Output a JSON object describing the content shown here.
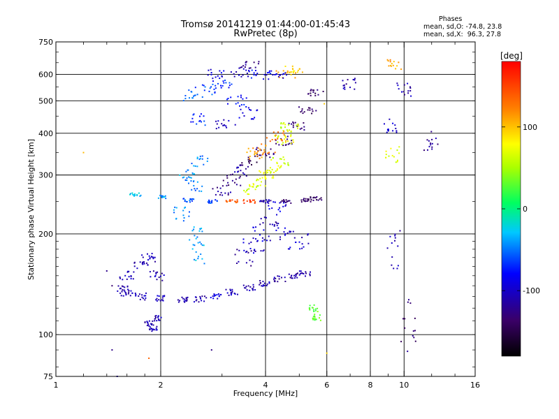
{
  "chart_data": {
    "type": "scatter",
    "title": "Tromsø 20141219 01:44:00-01:45:43",
    "subtitle": "RwPretec (8p)",
    "xlabel": "Frequency [MHz]",
    "ylabel": "Stationary phase Virtual Height [km]",
    "xscale": "log",
    "yscale": "log",
    "xlim": [
      1,
      16
    ],
    "ylim": [
      75,
      750
    ],
    "x_ticks": [
      1,
      2,
      4,
      6,
      8,
      10,
      16
    ],
    "x_tick_labels": [
      "1",
      "2",
      "4",
      "6",
      "8",
      "10",
      "16"
    ],
    "x_minor_ticks": [
      1.2,
      1.4,
      1.6,
      1.8,
      3,
      5,
      7,
      9,
      12,
      14
    ],
    "y_ticks": [
      75,
      100,
      200,
      300,
      400,
      500,
      600,
      750
    ],
    "y_tick_labels": [
      "75",
      "100",
      "200",
      "300",
      "400",
      "500",
      "600",
      "750"
    ],
    "grid": true,
    "colorbar": {
      "label": "[deg]",
      "range": [
        -180,
        180
      ],
      "ticks": [
        100,
        0,
        -100
      ],
      "tick_labels": [
        "100",
        "0",
        "-100"
      ]
    },
    "stats": {
      "heading": "Phases",
      "o_mode": "mean, sd,O: -74.8, 23.8",
      "x_mode": "mean, sd,X:  96.3, 27.8"
    },
    "clusters": [
      {
        "name": "E-layer-trace",
        "points": [
          [
            1.6,
            133,
            -110
          ],
          [
            1.75,
            130,
            -105
          ],
          [
            2.0,
            128,
            -105
          ],
          [
            2.3,
            127,
            -108
          ],
          [
            2.6,
            128,
            -110
          ],
          [
            2.9,
            131,
            -90
          ],
          [
            3.2,
            134,
            -105
          ],
          [
            3.6,
            138,
            -110
          ],
          [
            4.0,
            142,
            -110
          ],
          [
            4.4,
            147,
            -112
          ],
          [
            4.8,
            150,
            -115
          ],
          [
            5.2,
            152,
            -112
          ]
        ],
        "spread": [
          0.04,
          3
        ]
      },
      {
        "name": "E-trace-hook",
        "points": [
          [
            1.55,
            137,
            -110
          ],
          [
            1.6,
            150,
            -105
          ],
          [
            1.75,
            160,
            -110
          ],
          [
            1.85,
            170,
            -105
          ],
          [
            1.95,
            150,
            -108
          ]
        ],
        "spread": [
          0.05,
          5
        ]
      },
      {
        "name": "sporadic-low",
        "points": [
          [
            1.85,
            108,
            -110
          ],
          [
            1.9,
            104,
            -105
          ],
          [
            1.95,
            112,
            -110
          ]
        ],
        "spread": [
          0.03,
          2
        ]
      },
      {
        "name": "F1-lower-cusp",
        "points": [
          [
            3.5,
            170,
            -115
          ],
          [
            3.7,
            185,
            -100
          ],
          [
            3.9,
            200,
            -95
          ],
          [
            4.1,
            220,
            -110
          ],
          [
            4.3,
            240,
            -90
          ],
          [
            4.6,
            200,
            -100
          ],
          [
            5.0,
            190,
            -100
          ]
        ],
        "spread": [
          0.07,
          10
        ]
      },
      {
        "name": "O-F-ledge",
        "points": [
          [
            1.7,
            262,
            -30
          ],
          [
            2.0,
            258,
            -40
          ],
          [
            2.4,
            252,
            -55
          ],
          [
            2.8,
            250,
            -60
          ],
          [
            3.2,
            250,
            140
          ],
          [
            3.6,
            250,
            150
          ],
          [
            4.0,
            250,
            -110
          ],
          [
            4.6,
            250,
            -130
          ],
          [
            5.2,
            252,
            -135
          ],
          [
            5.6,
            255,
            -140
          ]
        ],
        "spread": [
          0.04,
          3
        ]
      },
      {
        "name": "mid-band-2",
        "points": [
          [
            2.4,
            300,
            -40
          ],
          [
            2.6,
            330,
            -45
          ],
          [
            2.5,
            280,
            -50
          ],
          [
            2.3,
            230,
            -45
          ],
          [
            2.5,
            200,
            -40
          ],
          [
            2.6,
            175,
            -35
          ]
        ],
        "spread": [
          0.06,
          12
        ]
      },
      {
        "name": "F2-O-trace",
        "points": [
          [
            3.0,
            270,
            -120
          ],
          [
            3.2,
            290,
            -130
          ],
          [
            3.4,
            310,
            -110
          ],
          [
            3.6,
            330,
            -140
          ],
          [
            4.0,
            350,
            -120
          ],
          [
            4.5,
            380,
            -125
          ],
          [
            4.9,
            420,
            -130
          ],
          [
            5.3,
            470,
            -140
          ],
          [
            5.6,
            530,
            -135
          ]
        ],
        "spread": [
          0.06,
          12
        ]
      },
      {
        "name": "F2-X-trace",
        "points": [
          [
            3.6,
            270,
            60
          ],
          [
            3.8,
            285,
            70
          ],
          [
            4.0,
            300,
            75
          ],
          [
            4.2,
            310,
            70
          ],
          [
            4.4,
            330,
            60
          ],
          [
            4.6,
            380,
            75
          ],
          [
            4.5,
            400,
            70
          ],
          [
            4.7,
            420,
            60
          ]
        ],
        "spread": [
          0.06,
          10
        ]
      },
      {
        "name": "X-orange",
        "points": [
          [
            3.8,
            350,
            110
          ],
          [
            4.0,
            360,
            115
          ],
          [
            4.3,
            390,
            125
          ],
          [
            4.6,
            600,
            105
          ],
          [
            4.8,
            620,
            90
          ],
          [
            3.6,
            640,
            -120
          ]
        ],
        "spread": [
          0.07,
          15
        ]
      },
      {
        "name": "upper-clutter",
        "points": [
          [
            2.5,
            520,
            -55
          ],
          [
            2.7,
            540,
            -60
          ],
          [
            3.0,
            560,
            -70
          ],
          [
            3.3,
            500,
            -80
          ],
          [
            3.6,
            460,
            -90
          ],
          [
            2.6,
            440,
            -70
          ],
          [
            3.1,
            430,
            -100
          ]
        ],
        "spread": [
          0.07,
          20
        ]
      },
      {
        "name": "upper-clutter-2",
        "points": [
          [
            2.9,
            600,
            -90
          ],
          [
            3.4,
            610,
            -100
          ],
          [
            3.9,
            600,
            -80
          ],
          [
            4.3,
            590,
            -90
          ]
        ],
        "spread": [
          0.07,
          20
        ]
      },
      {
        "name": "green-X",
        "points": [
          [
            5.5,
            120,
            30
          ],
          [
            5.6,
            113,
            35
          ]
        ],
        "spread": [
          0.03,
          3
        ]
      },
      {
        "name": "high-freq-spots",
        "points": [
          [
            7.0,
            560,
            -110
          ],
          [
            9.2,
            420,
            -95
          ],
          [
            9.3,
            180,
            -110
          ],
          [
            9.4,
            640,
            110
          ],
          [
            9.3,
            340,
            70
          ],
          [
            10.0,
            540,
            -110
          ],
          [
            10.3,
            110,
            -130
          ],
          [
            12.0,
            380,
            -120
          ]
        ],
        "spread": [
          0.05,
          25
        ]
      },
      {
        "name": "lone-points",
        "points": [
          [
            1.2,
            350,
            110
          ],
          [
            1.4,
            155,
            -110
          ],
          [
            1.45,
            140,
            -130
          ],
          [
            1.45,
            90,
            -115
          ],
          [
            1.5,
            75,
            -120
          ],
          [
            1.85,
            85,
            145
          ],
          [
            2.8,
            90,
            -115
          ],
          [
            6.0,
            88,
            95
          ],
          [
            5.9,
            490,
            95
          ]
        ],
        "spread": [
          0.0,
          0
        ]
      }
    ]
  }
}
